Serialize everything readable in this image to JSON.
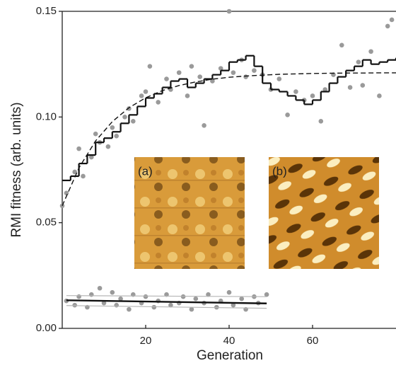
{
  "chart_data": {
    "type": "scatter",
    "ylabel": "RMI fitness (arb. units)",
    "xlabel": "Generation",
    "xlim": [
      0,
      80
    ],
    "ylim": [
      0,
      0.15
    ],
    "xticks": [
      20,
      40,
      60
    ],
    "yticks": [
      {
        "value": 0,
        "label": "0.00"
      },
      0.05,
      {
        "value": 0.1,
        "label": "0.10"
      },
      0.15
    ],
    "insets": [
      "(a)",
      "(b)"
    ],
    "points": {
      "color": "#9a9a9a",
      "x": [
        0,
        1,
        3,
        4,
        5,
        7,
        8,
        9,
        11,
        12,
        13,
        15,
        16,
        17,
        19,
        20,
        21,
        23,
        25,
        26,
        28,
        30,
        31,
        33,
        34,
        36,
        38,
        40,
        41,
        43,
        44,
        46,
        48,
        50,
        52,
        54,
        56,
        58,
        60,
        62,
        63,
        65,
        67,
        69,
        71,
        72,
        74,
        76,
        78,
        79
      ],
      "values": [
        0.058,
        0.064,
        0.074,
        0.085,
        0.072,
        0.081,
        0.092,
        0.088,
        0.086,
        0.095,
        0.091,
        0.1,
        0.104,
        0.098,
        0.11,
        0.112,
        0.124,
        0.107,
        0.118,
        0.113,
        0.121,
        0.11,
        0.124,
        0.119,
        0.096,
        0.117,
        0.123,
        0.15,
        0.121,
        0.127,
        0.119,
        0.122,
        0.12,
        0.113,
        0.118,
        0.101,
        0.112,
        0.108,
        0.11,
        0.098,
        0.113,
        0.12,
        0.134,
        0.114,
        0.126,
        0.115,
        0.131,
        0.11,
        0.143,
        0.146
      ]
    },
    "step": {
      "color": "#111111",
      "x": [
        0,
        2,
        4,
        6,
        8,
        10,
        12,
        14,
        16,
        18,
        20,
        22,
        24,
        26,
        28,
        30,
        32,
        34,
        36,
        38,
        40,
        42,
        44,
        46,
        48,
        50,
        52,
        54,
        56,
        58,
        60,
        62,
        64,
        66,
        68,
        70,
        72,
        74,
        76,
        78,
        80
      ],
      "values": [
        0.07,
        0.072,
        0.078,
        0.082,
        0.088,
        0.09,
        0.093,
        0.097,
        0.101,
        0.105,
        0.109,
        0.111,
        0.114,
        0.117,
        0.118,
        0.114,
        0.116,
        0.118,
        0.12,
        0.122,
        0.126,
        0.127,
        0.129,
        0.124,
        0.116,
        0.113,
        0.112,
        0.11,
        0.108,
        0.106,
        0.108,
        0.112,
        0.116,
        0.119,
        0.122,
        0.124,
        0.127,
        0.125,
        0.126,
        0.127,
        0.128
      ]
    },
    "fit": {
      "color": "#111111",
      "x": [
        0,
        4,
        8,
        12,
        16,
        20,
        24,
        28,
        32,
        36,
        40,
        44,
        48,
        52,
        56,
        60,
        64,
        68,
        72,
        76,
        80
      ],
      "values": [
        0.058,
        0.0759,
        0.0887,
        0.0978,
        0.1044,
        0.1091,
        0.1125,
        0.1149,
        0.1166,
        0.1179,
        0.1188,
        0.1194,
        0.1198,
        0.1202,
        0.1204,
        0.1206,
        0.1207,
        0.1208,
        0.1208,
        0.1209,
        0.1209
      ]
    },
    "control_points": {
      "color": "#9a9a9a",
      "x": [
        1,
        3,
        4,
        6,
        7,
        9,
        10,
        12,
        13,
        14,
        16,
        17,
        19,
        20,
        22,
        23,
        25,
        26,
        28,
        29,
        31,
        32,
        34,
        35,
        37,
        38,
        40,
        41,
        43,
        44,
        46,
        47,
        49
      ],
      "values": [
        0.013,
        0.011,
        0.015,
        0.01,
        0.016,
        0.019,
        0.012,
        0.017,
        0.011,
        0.014,
        0.009,
        0.016,
        0.012,
        0.015,
        0.01,
        0.013,
        0.016,
        0.011,
        0.012,
        0.015,
        0.009,
        0.014,
        0.012,
        0.016,
        0.01,
        0.013,
        0.017,
        0.011,
        0.014,
        0.009,
        0.015,
        0.012,
        0.016
      ]
    },
    "control_line": {
      "color": "#111111",
      "x": [
        1,
        49
      ],
      "values": [
        0.0133,
        0.0118
      ]
    },
    "control_band_upper": {
      "color": "#b5b5b5",
      "x": [
        1,
        49
      ],
      "values": [
        0.0155,
        0.015
      ]
    },
    "control_band_lower": {
      "color": "#b5b5b5",
      "x": [
        1,
        49
      ],
      "values": [
        0.0108,
        0.0095
      ]
    }
  }
}
